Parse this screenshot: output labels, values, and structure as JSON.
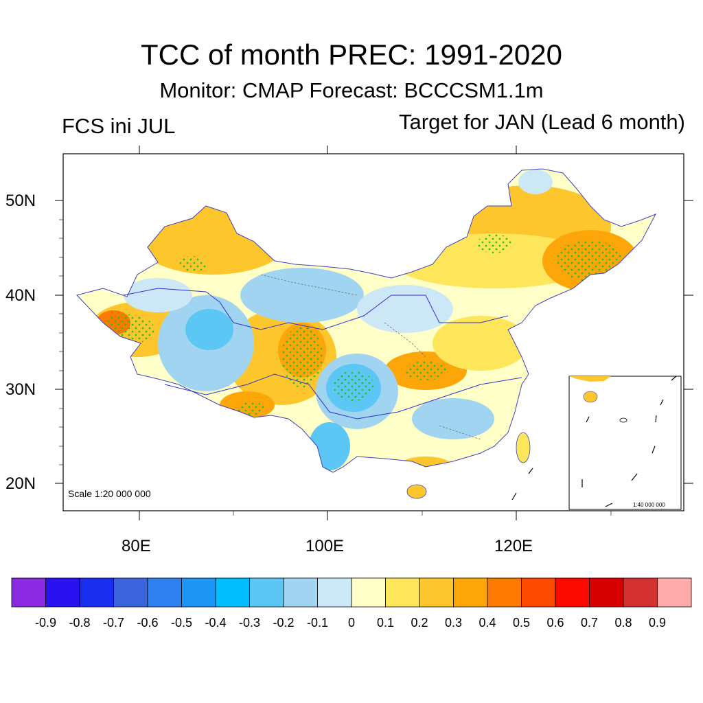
{
  "title": "TCC of month PREC: 1991-2020",
  "subtitle": "Monitor: CMAP   Forecast: BCCCSM1.1m",
  "left_label": "FCS ini JUL",
  "right_label": "Target for JAN (Lead 6 month)",
  "scale_main": "Scale 1:20 000 000",
  "scale_inset": "1:40 000 000",
  "lat_labels": [
    "50N",
    "40N",
    "30N",
    "20N"
  ],
  "lon_labels": [
    "80E",
    "100E",
    "120E"
  ],
  "colorbar": {
    "colors": [
      "#8a2be2",
      "#2a12f0",
      "#1a2ef0",
      "#3c64dd",
      "#2e7ff0",
      "#1e96f5",
      "#00beff",
      "#5cc6f5",
      "#a0d4f0",
      "#cce8f7",
      "#ffffc8",
      "#fde65a",
      "#fcc62c",
      "#fca60a",
      "#fc7a00",
      "#fc4a00",
      "#fc0a00",
      "#d80000",
      "#d43232",
      "#ffaaaa"
    ],
    "labels": [
      "-0.9",
      "-0.8",
      "-0.7",
      "-0.6",
      "-0.5",
      "-0.4",
      "-0.3",
      "-0.2",
      "-0.1",
      "0",
      "0.1",
      "0.2",
      "0.3",
      "0.4",
      "0.5",
      "0.6",
      "0.7",
      "0.8",
      "0.9"
    ]
  }
}
